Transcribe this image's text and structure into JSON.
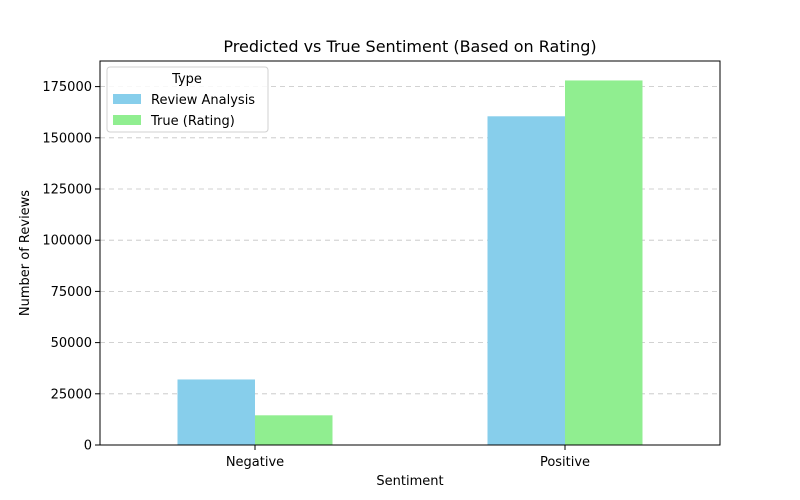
{
  "chart_data": {
    "type": "bar",
    "title": "Predicted vs True Sentiment (Based on Rating)",
    "xlabel": "Sentiment",
    "ylabel": "Number of Reviews",
    "categories": [
      "Negative",
      "Positive"
    ],
    "series": [
      {
        "name": "Review Analysis",
        "values": [
          32000,
          160500
        ],
        "color": "#87CEEB"
      },
      {
        "name": "True (Rating)",
        "values": [
          14500,
          178000
        ],
        "color": "#90EE90"
      }
    ],
    "ylim": [
      0,
      187500
    ],
    "yticks": [
      0,
      25000,
      50000,
      75000,
      100000,
      125000,
      150000,
      175000
    ],
    "grid": "y-dashed",
    "legend": {
      "title": "Type",
      "placement": "top-left"
    }
  }
}
